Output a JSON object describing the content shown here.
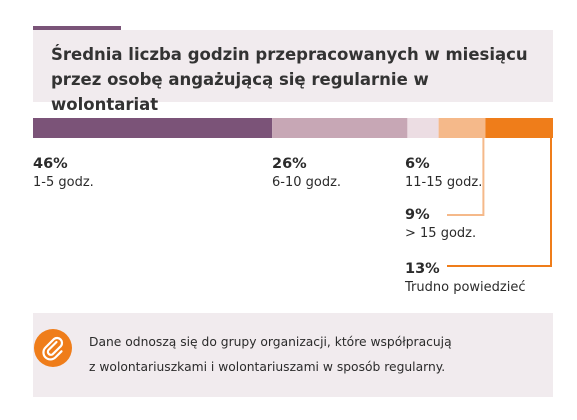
{
  "title": "Średnia liczba godzin przepracowanych w miesiącu przez osobę angażującą się regularnie w wolontariat",
  "colors": {
    "accent": "#7a5478",
    "panel": "#f1ebee",
    "orange": "#ef7d1a"
  },
  "chart_data": {
    "type": "bar",
    "stacked": true,
    "orientation": "horizontal",
    "unit": "%",
    "categories": [
      "1-5 godz.",
      "6-10 godz.",
      "11-15 godz.",
      "> 15 godz.",
      "Trudno powiedzieć"
    ],
    "values": [
      46,
      26,
      6,
      9,
      13
    ],
    "value_labels": [
      "46%",
      "26%",
      "6%",
      "9%",
      "13%"
    ],
    "colors": [
      "#7b5378",
      "#c7a7b5",
      "#ecdde3",
      "#f5b98a",
      "#ef7d1a"
    ],
    "xlim": [
      0,
      100
    ],
    "title": "Średnia liczba godzin przepracowanych w miesiącu przez osobę angażującą się regularnie w wolontariat"
  },
  "note": {
    "icon": "paperclip-icon",
    "text_line1": "Dane odnoszą się do grupy organizacji, które współpracują",
    "text_line2": "z wolontariuszkami i wolontariuszami w sposób regularny."
  }
}
